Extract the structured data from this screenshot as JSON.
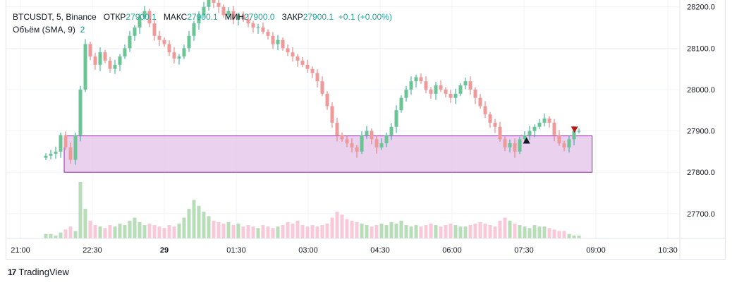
{
  "legend": {
    "symbol": "BTCUSDT, 5, Binance",
    "open_label": "ОТКР",
    "open_value": "27900.1",
    "high_label": "МАКС",
    "high_value": "27900.1",
    "low_label": "МИН",
    "low_value": "27900.0",
    "close_label": "ЗАКР",
    "close_value": "27900.1",
    "change": "+0.1 (+0.00%)",
    "volume_label": "Объём (SMA, 9)",
    "volume_value": "2"
  },
  "branding": {
    "name": "TradingView",
    "logo_icon": "tradingview-logo-icon"
  },
  "colors": {
    "up": "#26a69a",
    "up_body": "#6bc494",
    "down": "#ef9a9a",
    "zone_fill": "#e1bee7",
    "zone_border": "#9c27b0",
    "up_arrow": "#131722",
    "down_arrow": "#b71c1c"
  },
  "chart_data": {
    "type": "candlestick",
    "x_ticks": [
      {
        "label": "21:00",
        "bold": false
      },
      {
        "label": "22:30",
        "bold": false
      },
      {
        "label": "29",
        "bold": true
      },
      {
        "label": "01:30",
        "bold": false
      },
      {
        "label": "03:00",
        "bold": false
      },
      {
        "label": "04:30",
        "bold": false
      },
      {
        "label": "06:00",
        "bold": false
      },
      {
        "label": "07:30",
        "bold": false
      },
      {
        "label": "09:00",
        "bold": false
      },
      {
        "label": "10:30",
        "bold": false
      }
    ],
    "y_ticks": [
      "28200.0",
      "28100.0",
      "28000.0",
      "27900.0",
      "27800.0",
      "27700.0"
    ],
    "y_tick_values": [
      28200,
      28100,
      28000,
      27900,
      27800,
      27700
    ],
    "ylim": [
      27640,
      28220
    ],
    "support_zone": {
      "low": 27800,
      "high": 27888,
      "start": "21:15",
      "end": "08:35"
    },
    "signals": [
      {
        "type": "buy-arrow",
        "time": "07:35",
        "price": 27878
      },
      {
        "type": "sell-arrow",
        "time": "08:35",
        "price": 27902
      }
    ],
    "closes": [
      27840,
      27845,
      27850,
      27890,
      27860,
      27830,
      27890,
      28000,
      28110,
      28080,
      28060,
      28090,
      28070,
      28050,
      28060,
      28080,
      28100,
      28130,
      28150,
      28175,
      28190,
      28160,
      28130,
      28120,
      28110,
      28090,
      28075,
      28080,
      28100,
      28130,
      28160,
      28180,
      28200,
      28220,
      28210,
      28200,
      28180,
      28190,
      28170,
      28180,
      28170,
      28160,
      28150,
      28150,
      28140,
      28130,
      28110,
      28120,
      28100,
      28090,
      28080,
      28070,
      28060,
      28050,
      28040,
      28020,
      27990,
      27960,
      27920,
      27890,
      27880,
      27870,
      27860,
      27850,
      27890,
      27900,
      27880,
      27860,
      27870,
      27890,
      27910,
      27950,
      27980,
      28000,
      28020,
      28030,
      28020,
      28000,
      27990,
      28010,
      28000,
      27990,
      27980,
      27990,
      28010,
      28020,
      28000,
      27980,
      27960,
      27940,
      27920,
      27910,
      27880,
      27860,
      27870,
      27850,
      27880,
      27890,
      27900,
      27910,
      27920,
      27930,
      27920,
      27890,
      27870,
      27860,
      27880,
      27900,
      27900
    ],
    "volumes": [
      3,
      3,
      2,
      4,
      6,
      8,
      5,
      38,
      20,
      12,
      9,
      8,
      7,
      9,
      8,
      10,
      9,
      12,
      14,
      11,
      9,
      10,
      9,
      8,
      7,
      9,
      8,
      10,
      14,
      20,
      26,
      22,
      18,
      15,
      12,
      11,
      10,
      11,
      9,
      10,
      8,
      9,
      8,
      7,
      9,
      8,
      7,
      8,
      9,
      11,
      10,
      12,
      9,
      8,
      9,
      8,
      9,
      10,
      14,
      18,
      16,
      13,
      12,
      11,
      10,
      9,
      8,
      9,
      10,
      9,
      11,
      10,
      12,
      9,
      8,
      9,
      8,
      9,
      10,
      9,
      8,
      9,
      10,
      9,
      8,
      8,
      9,
      10,
      11,
      10,
      9,
      8,
      12,
      14,
      12,
      10,
      9,
      8,
      7,
      9,
      8,
      8,
      7,
      6,
      5,
      5,
      3,
      2,
      2
    ]
  }
}
